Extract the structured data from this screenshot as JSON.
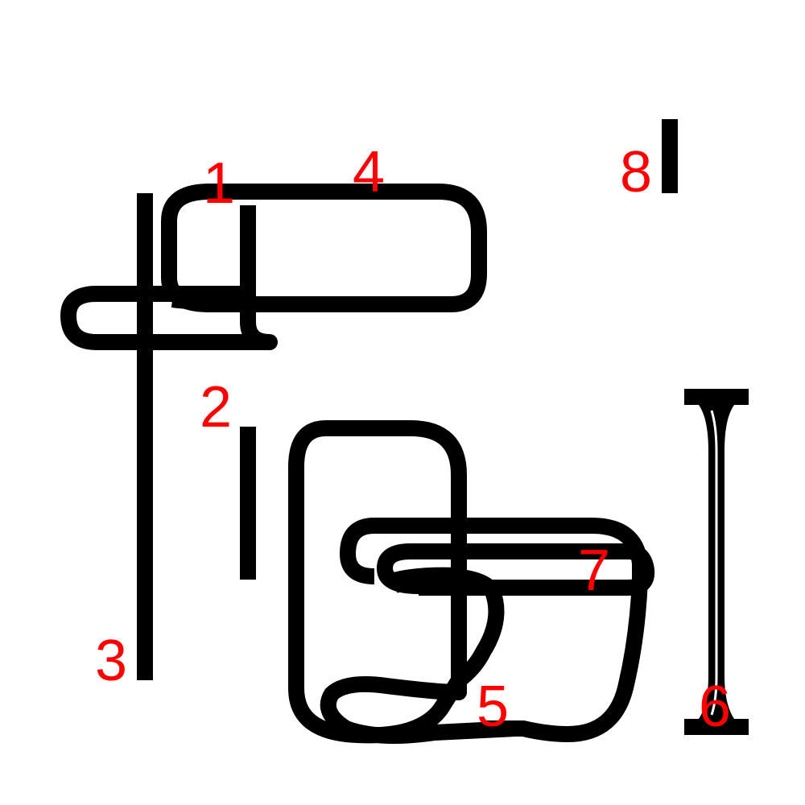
{
  "colors": {
    "background": "#ffffff",
    "stroke": "#000000",
    "label": "#ff0000"
  },
  "labels": {
    "l1": "1",
    "l2": "2",
    "l3": "3",
    "l4": "4",
    "l5": "5",
    "l6": "6",
    "l7": "7",
    "l8": "8"
  }
}
